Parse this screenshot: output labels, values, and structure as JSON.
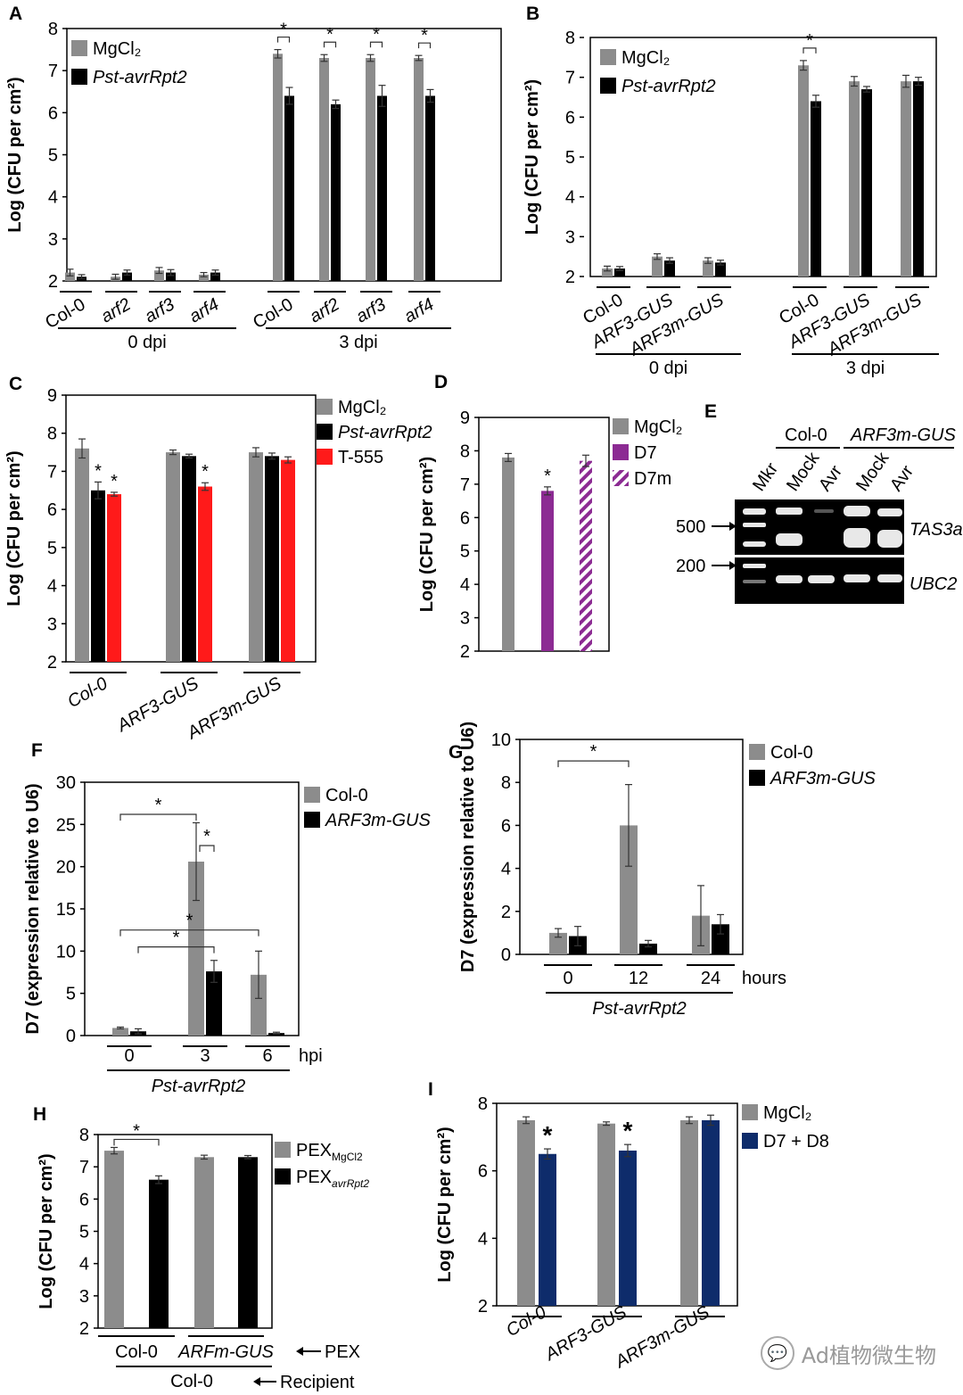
{
  "colors": {
    "gray": "#8c8c8c",
    "black": "#000000",
    "red": "#ff1a1a",
    "purple": "#8c2b93",
    "navy": "#0e2c6b"
  },
  "watermark": "Ad植物微生物",
  "watermark_icon": "wechat-icon",
  "chart_data": [
    {
      "id": "A",
      "type": "bar",
      "ylabel": "Log (CFU per cm²)",
      "ylim": [
        2,
        8
      ],
      "yticks": [
        2,
        3,
        4,
        5,
        6,
        7,
        8
      ],
      "legend": [
        {
          "name": "MgCl₂",
          "color": "gray",
          "italic": false
        },
        {
          "name": "Pst-avrRpt2",
          "color": "black",
          "italic": true
        }
      ],
      "groups": [
        {
          "label": "Col-0",
          "italic": false,
          "values": [
            2.2,
            2.1
          ],
          "err": [
            0.08,
            0.05
          ],
          "color": [
            "gray",
            "black"
          ]
        },
        {
          "label": "arf2",
          "italic": true,
          "values": [
            2.1,
            2.2
          ],
          "err": [
            0.06,
            0.06
          ],
          "color": [
            "gray",
            "black"
          ]
        },
        {
          "label": "arf3",
          "italic": true,
          "values": [
            2.25,
            2.2
          ],
          "err": [
            0.07,
            0.07
          ],
          "color": [
            "gray",
            "black"
          ]
        },
        {
          "label": "arf4",
          "italic": true,
          "values": [
            2.15,
            2.2
          ],
          "err": [
            0.05,
            0.06
          ],
          "color": [
            "gray",
            "black"
          ]
        },
        {
          "label": "Col-0",
          "italic": false,
          "values": [
            7.4,
            6.4
          ],
          "err": [
            0.1,
            0.2
          ],
          "color": [
            "gray",
            "black"
          ]
        },
        {
          "label": "arf2",
          "italic": true,
          "values": [
            7.3,
            6.2
          ],
          "err": [
            0.08,
            0.1
          ],
          "color": [
            "gray",
            "black"
          ]
        },
        {
          "label": "arf3",
          "italic": true,
          "values": [
            7.3,
            6.4
          ],
          "err": [
            0.08,
            0.25
          ],
          "color": [
            "gray",
            "black"
          ]
        },
        {
          "label": "arf4",
          "italic": true,
          "values": [
            7.3,
            6.4
          ],
          "err": [
            0.06,
            0.15
          ],
          "color": [
            "gray",
            "black"
          ]
        }
      ],
      "brackets": [
        {
          "g": 4,
          "text": "*"
        },
        {
          "g": 5,
          "text": "*"
        },
        {
          "g": 6,
          "text": "*"
        },
        {
          "g": 7,
          "text": "*"
        }
      ],
      "stars": [],
      "group_labels": [
        {
          "text": "0 dpi",
          "from": 0,
          "to": 3
        },
        {
          "text": "3 dpi",
          "from": 4,
          "to": 7
        }
      ]
    },
    {
      "id": "B",
      "type": "bar",
      "ylabel": "Log (CFU per cm²)",
      "ylim": [
        2,
        8
      ],
      "yticks": [
        2,
        3,
        4,
        5,
        6,
        7,
        8
      ],
      "legend": [
        {
          "name": "MgCl₂",
          "color": "gray",
          "italic": false
        },
        {
          "name": "Pst-avrRpt2",
          "color": "black",
          "italic": true
        }
      ],
      "groups": [
        {
          "label": "Col-0",
          "italic": false,
          "values": [
            2.2,
            2.2
          ],
          "err": [
            0.06,
            0.05
          ],
          "color": [
            "gray",
            "black"
          ]
        },
        {
          "label": "ARF3-GUS",
          "italic": true,
          "values": [
            2.5,
            2.4
          ],
          "err": [
            0.07,
            0.07
          ],
          "color": [
            "gray",
            "black"
          ]
        },
        {
          "label": "ARF3m-GUS",
          "italic": true,
          "values": [
            2.4,
            2.35
          ],
          "err": [
            0.07,
            0.06
          ],
          "color": [
            "gray",
            "black"
          ]
        },
        {
          "label": "Col-0",
          "italic": false,
          "values": [
            7.3,
            6.4
          ],
          "err": [
            0.12,
            0.15
          ],
          "color": [
            "gray",
            "black"
          ]
        },
        {
          "label": "ARF3-GUS",
          "italic": true,
          "values": [
            6.9,
            6.7
          ],
          "err": [
            0.12,
            0.07
          ],
          "color": [
            "gray",
            "black"
          ]
        },
        {
          "label": "ARF3m-GUS",
          "italic": true,
          "values": [
            6.9,
            6.9
          ],
          "err": [
            0.15,
            0.1
          ],
          "color": [
            "gray",
            "black"
          ]
        }
      ],
      "brackets": [
        {
          "g": 3,
          "text": "*"
        }
      ],
      "stars": [],
      "group_labels": [
        {
          "text": "0 dpi",
          "from": 0,
          "to": 2
        },
        {
          "text": "3 dpi",
          "from": 3,
          "to": 5
        }
      ]
    },
    {
      "id": "C",
      "type": "bar",
      "ylabel": "Log (CFU per cm²)",
      "ylim": [
        2,
        9
      ],
      "yticks": [
        2,
        3,
        4,
        5,
        6,
        7,
        8,
        9
      ],
      "legend": [
        {
          "name": "MgCl₂",
          "color": "gray",
          "italic": false
        },
        {
          "name": "Pst-avrRpt2",
          "color": "black",
          "italic": true
        },
        {
          "name": "T-555",
          "color": "red",
          "italic": false
        }
      ],
      "groups": [
        {
          "label": "Col-0",
          "italic": true,
          "values": [
            7.6,
            6.5,
            6.4
          ],
          "err": [
            0.25,
            0.22,
            0.05
          ],
          "color": [
            "gray",
            "black",
            "red"
          ]
        },
        {
          "label": "ARF3-GUS",
          "italic": true,
          "values": [
            7.5,
            7.4,
            6.6
          ],
          "err": [
            0.06,
            0.05,
            0.1
          ],
          "color": [
            "gray",
            "black",
            "red"
          ]
        },
        {
          "label": "ARF3m-GUS",
          "italic": true,
          "values": [
            7.5,
            7.4,
            7.3
          ],
          "err": [
            0.12,
            0.08,
            0.08
          ],
          "color": [
            "gray",
            "black",
            "red"
          ]
        }
      ],
      "brackets": [],
      "stars": [
        {
          "g": 0,
          "s": 1,
          "text": "*"
        },
        {
          "g": 0,
          "s": 2,
          "text": "*"
        },
        {
          "g": 1,
          "s": 2,
          "text": "*"
        }
      ],
      "group_labels": []
    },
    {
      "id": "D",
      "type": "bar",
      "ylabel": "Log (CFU per cm²)",
      "ylim": [
        2,
        9
      ],
      "yticks": [
        2,
        3,
        4,
        5,
        6,
        7,
        8,
        9
      ],
      "legend": [
        {
          "name": "MgCl₂",
          "color": "gray",
          "italic": false
        },
        {
          "name": "D7",
          "color": "purple",
          "italic": false
        },
        {
          "name": "D7m",
          "color": "hatch",
          "italic": false
        }
      ],
      "groups": [
        {
          "label": "",
          "italic": false,
          "values": [
            7.8
          ],
          "err": [
            0.12
          ],
          "color": [
            "gray"
          ]
        },
        {
          "label": "",
          "italic": false,
          "values": [
            6.8
          ],
          "err": [
            0.12
          ],
          "color": [
            "purple"
          ]
        },
        {
          "label": "",
          "italic": false,
          "values": [
            7.7
          ],
          "err": [
            0.17
          ],
          "color": [
            "hatch"
          ]
        }
      ],
      "brackets": [],
      "stars": [
        {
          "g": 1,
          "s": 0,
          "text": "*"
        }
      ],
      "group_labels": []
    },
    {
      "id": "F",
      "type": "bar",
      "ylabel": "D7 (expression relative to U6)",
      "ylim": [
        0,
        30
      ],
      "yticks": [
        0,
        5,
        10,
        15,
        20,
        25,
        30
      ],
      "legend": [
        {
          "name": "Col-0",
          "color": "gray",
          "italic": false
        },
        {
          "name": "ARF3m-GUS",
          "color": "black",
          "italic": true
        }
      ],
      "groups": [
        {
          "label": "0",
          "italic": false,
          "values": [
            0.9,
            0.5
          ],
          "err": [
            0.1,
            0.3
          ],
          "color": [
            "gray",
            "black"
          ]
        },
        {
          "label": "3",
          "italic": false,
          "values": [
            20.6,
            7.6
          ],
          "err": [
            4.6,
            1.3
          ],
          "color": [
            "gray",
            "black"
          ]
        },
        {
          "label": "6",
          "italic": false,
          "values": [
            7.2,
            0.3
          ],
          "err": [
            2.8,
            0.1
          ],
          "color": [
            "gray",
            "black"
          ]
        }
      ],
      "brackets": [],
      "stars": [],
      "group_labels": [
        {
          "text": "Pst-avrRpt2",
          "from": 0,
          "to": 2,
          "italic": true
        }
      ],
      "xunit": "hpi"
    },
    {
      "id": "G",
      "type": "bar",
      "ylabel": "D7 (expression relative to U6)",
      "ylim": [
        0,
        10
      ],
      "yticks": [
        0,
        2,
        4,
        6,
        8,
        10
      ],
      "legend": [
        {
          "name": "Col-0",
          "color": "gray",
          "italic": false
        },
        {
          "name": "ARF3m-GUS",
          "color": "black",
          "italic": true
        }
      ],
      "groups": [
        {
          "label": "0",
          "italic": false,
          "values": [
            1.0,
            0.85
          ],
          "err": [
            0.2,
            0.45
          ],
          "color": [
            "gray",
            "black"
          ]
        },
        {
          "label": "12",
          "italic": false,
          "values": [
            6.0,
            0.5
          ],
          "err": [
            1.9,
            0.15
          ],
          "color": [
            "gray",
            "black"
          ]
        },
        {
          "label": "24",
          "italic": false,
          "values": [
            1.8,
            1.4
          ],
          "err": [
            1.4,
            0.45
          ],
          "color": [
            "gray",
            "black"
          ]
        }
      ],
      "brackets": [],
      "stars": [],
      "group_labels": [
        {
          "text": "Pst-avrRpt2",
          "from": 0,
          "to": 2,
          "italic": true
        }
      ],
      "xunit": "hours"
    },
    {
      "id": "H",
      "type": "bar",
      "ylabel": "Log (CFU per cm²)",
      "ylim": [
        2,
        8
      ],
      "yticks": [
        2,
        3,
        4,
        5,
        6,
        7,
        8
      ],
      "legend": [
        {
          "name": "PEX",
          "sub": "MgCl2",
          "color": "gray",
          "italic": false
        },
        {
          "name": "PEX",
          "sub": "avrRpt2",
          "color": "black",
          "italic": false
        }
      ],
      "groups": [
        {
          "label": "",
          "italic": false,
          "values": [
            7.5
          ],
          "err": [
            0.1
          ],
          "color": [
            "gray"
          ]
        },
        {
          "label": "",
          "italic": false,
          "values": [
            6.6
          ],
          "err": [
            0.12
          ],
          "color": [
            "black"
          ]
        },
        {
          "label": "",
          "italic": false,
          "values": [
            7.3
          ],
          "err": [
            0.06
          ],
          "color": [
            "gray"
          ]
        },
        {
          "label": "",
          "italic": false,
          "values": [
            7.3
          ],
          "err": [
            0.05
          ],
          "color": [
            "black"
          ]
        }
      ],
      "brackets": [],
      "stars": [],
      "group_labels": [
        {
          "text": "Col-0",
          "from": 0,
          "to": 1,
          "italic": false
        },
        {
          "text": "ARFm-GUS",
          "from": 2,
          "to": 3,
          "italic": true
        }
      ],
      "pex_label": "PEX",
      "recipient_label": "Recipient",
      "recipient_text": "Col-0"
    },
    {
      "id": "I",
      "type": "bar",
      "ylabel": "Log (CFU per cm²)",
      "ylim": [
        2,
        8
      ],
      "yticks": [
        2,
        4,
        6,
        8
      ],
      "legend": [
        {
          "name": "MgCl₂",
          "color": "gray",
          "italic": false
        },
        {
          "name": "D7 + D8",
          "color": "navy",
          "italic": false
        }
      ],
      "groups": [
        {
          "label": "Col-0",
          "italic": true,
          "values": [
            7.5,
            6.5
          ],
          "err": [
            0.1,
            0.15
          ],
          "color": [
            "gray",
            "navy"
          ]
        },
        {
          "label": "ARF3-GUS",
          "italic": true,
          "values": [
            7.4,
            6.6
          ],
          "err": [
            0.05,
            0.18
          ],
          "color": [
            "gray",
            "navy"
          ]
        },
        {
          "label": "ARF3m-GUS",
          "italic": true,
          "values": [
            7.5,
            7.5
          ],
          "err": [
            0.1,
            0.15
          ],
          "color": [
            "gray",
            "navy"
          ]
        }
      ],
      "brackets": [],
      "stars": [
        {
          "g": 0,
          "s": 1,
          "text": "*"
        },
        {
          "g": 1,
          "s": 1,
          "text": "*"
        }
      ],
      "group_labels": []
    }
  ],
  "panels": {
    "A": "A",
    "B": "B",
    "C": "C",
    "D": "D",
    "E": "E",
    "F": "F",
    "G": "G",
    "H": "H",
    "I": "I"
  },
  "gel": {
    "columns": [
      "Mkr",
      "Mock",
      "Avr",
      "Mock",
      "Avr"
    ],
    "genotypes": [
      "Col-0",
      "ARF3m-GUS"
    ],
    "markers": [
      "500",
      "200"
    ],
    "genes": [
      "TAS3a",
      "UBC2"
    ]
  },
  "brackets_F": [
    {
      "text": "*"
    },
    {
      "text": "*"
    },
    {
      "text": "*"
    },
    {
      "text": "*"
    }
  ],
  "brackets_G": [
    {
      "text": "*"
    }
  ],
  "brackets_H": [
    {
      "text": "*"
    }
  ]
}
